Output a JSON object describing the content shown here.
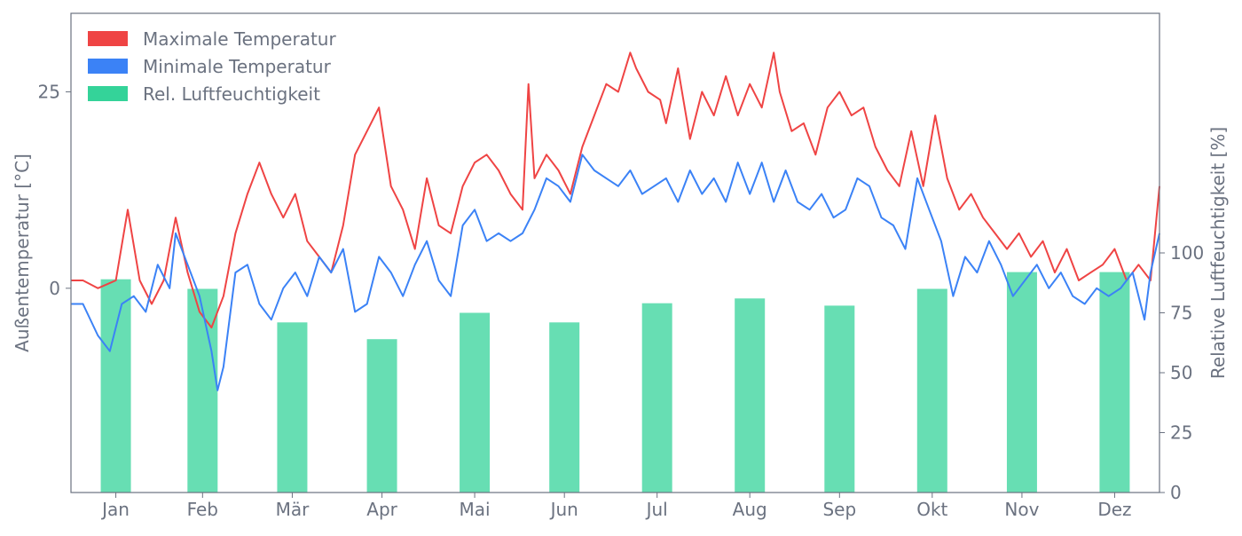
{
  "chart_data": {
    "type": "line",
    "xlabel": "",
    "ylabel_left": "Außentemperatur [°C]",
    "ylabel_right": "Relative Luftfeuchtigkeit [%]",
    "y_left_ticks": [
      "0",
      "25"
    ],
    "y_left_range": [
      -26,
      35
    ],
    "y_right_ticks": [
      "0",
      "25",
      "50",
      "75",
      "100"
    ],
    "y_right_range": [
      0,
      200
    ],
    "x_range": [
      1,
      365
    ],
    "months": [
      {
        "label": "Jan",
        "day": 16
      },
      {
        "label": "Feb",
        "day": 45
      },
      {
        "label": "Mär",
        "day": 75
      },
      {
        "label": "Apr",
        "day": 105
      },
      {
        "label": "Mai",
        "day": 136
      },
      {
        "label": "Jun",
        "day": 166
      },
      {
        "label": "Jul",
        "day": 197
      },
      {
        "label": "Aug",
        "day": 228
      },
      {
        "label": "Sep",
        "day": 258
      },
      {
        "label": "Okt",
        "day": 289
      },
      {
        "label": "Nov",
        "day": 319
      },
      {
        "label": "Dez",
        "day": 350
      }
    ],
    "legend": {
      "position": "top-left",
      "entries": [
        "Maximale Temperatur",
        "Minimale Temperatur",
        "Rel. Luftfeuchtigkeit"
      ]
    },
    "grid": false,
    "series": [
      {
        "name": "Maximale Temperatur",
        "kind": "line",
        "axis": "left",
        "color": "#ef4444",
        "points": [
          [
            1,
            1
          ],
          [
            5,
            1
          ],
          [
            10,
            0
          ],
          [
            16,
            1
          ],
          [
            20,
            10
          ],
          [
            24,
            1
          ],
          [
            28,
            -2
          ],
          [
            32,
            1
          ],
          [
            36,
            9
          ],
          [
            40,
            2
          ],
          [
            44,
            -3
          ],
          [
            48,
            -5
          ],
          [
            52,
            -1
          ],
          [
            56,
            7
          ],
          [
            60,
            12
          ],
          [
            64,
            16
          ],
          [
            68,
            12
          ],
          [
            72,
            9
          ],
          [
            76,
            12
          ],
          [
            80,
            6
          ],
          [
            84,
            4
          ],
          [
            88,
            2
          ],
          [
            92,
            8
          ],
          [
            96,
            17
          ],
          [
            100,
            20
          ],
          [
            104,
            23
          ],
          [
            108,
            13
          ],
          [
            112,
            10
          ],
          [
            116,
            5
          ],
          [
            120,
            14
          ],
          [
            124,
            8
          ],
          [
            128,
            7
          ],
          [
            132,
            13
          ],
          [
            136,
            16
          ],
          [
            140,
            17
          ],
          [
            144,
            15
          ],
          [
            148,
            12
          ],
          [
            152,
            10
          ],
          [
            154,
            26
          ],
          [
            156,
            14
          ],
          [
            160,
            17
          ],
          [
            164,
            15
          ],
          [
            168,
            12
          ],
          [
            172,
            18
          ],
          [
            176,
            22
          ],
          [
            180,
            26
          ],
          [
            184,
            25
          ],
          [
            188,
            30
          ],
          [
            190,
            28
          ],
          [
            194,
            25
          ],
          [
            198,
            24
          ],
          [
            200,
            21
          ],
          [
            204,
            28
          ],
          [
            208,
            19
          ],
          [
            212,
            25
          ],
          [
            216,
            22
          ],
          [
            220,
            27
          ],
          [
            224,
            22
          ],
          [
            228,
            26
          ],
          [
            232,
            23
          ],
          [
            236,
            30
          ],
          [
            238,
            25
          ],
          [
            242,
            20
          ],
          [
            246,
            21
          ],
          [
            250,
            17
          ],
          [
            254,
            23
          ],
          [
            258,
            25
          ],
          [
            262,
            22
          ],
          [
            266,
            23
          ],
          [
            270,
            18
          ],
          [
            274,
            15
          ],
          [
            278,
            13
          ],
          [
            282,
            20
          ],
          [
            286,
            13
          ],
          [
            290,
            22
          ],
          [
            294,
            14
          ],
          [
            298,
            10
          ],
          [
            302,
            12
          ],
          [
            306,
            9
          ],
          [
            310,
            7
          ],
          [
            314,
            5
          ],
          [
            318,
            7
          ],
          [
            322,
            4
          ],
          [
            326,
            6
          ],
          [
            330,
            2
          ],
          [
            334,
            5
          ],
          [
            338,
            1
          ],
          [
            342,
            2
          ],
          [
            346,
            3
          ],
          [
            350,
            5
          ],
          [
            354,
            1
          ],
          [
            358,
            3
          ],
          [
            362,
            1
          ],
          [
            365,
            13
          ]
        ]
      },
      {
        "name": "Minimale Temperatur",
        "kind": "line",
        "axis": "left",
        "color": "#3b82f6",
        "points": [
          [
            1,
            -2
          ],
          [
            5,
            -2
          ],
          [
            10,
            -6
          ],
          [
            14,
            -8
          ],
          [
            18,
            -2
          ],
          [
            22,
            -1
          ],
          [
            26,
            -3
          ],
          [
            30,
            3
          ],
          [
            34,
            0
          ],
          [
            36,
            7
          ],
          [
            40,
            3
          ],
          [
            44,
            -1
          ],
          [
            48,
            -8
          ],
          [
            50,
            -13
          ],
          [
            52,
            -10
          ],
          [
            56,
            2
          ],
          [
            60,
            3
          ],
          [
            64,
            -2
          ],
          [
            68,
            -4
          ],
          [
            72,
            0
          ],
          [
            76,
            2
          ],
          [
            80,
            -1
          ],
          [
            84,
            4
          ],
          [
            88,
            2
          ],
          [
            92,
            5
          ],
          [
            96,
            -3
          ],
          [
            100,
            -2
          ],
          [
            104,
            4
          ],
          [
            108,
            2
          ],
          [
            112,
            -1
          ],
          [
            116,
            3
          ],
          [
            120,
            6
          ],
          [
            124,
            1
          ],
          [
            128,
            -1
          ],
          [
            132,
            8
          ],
          [
            136,
            10
          ],
          [
            140,
            6
          ],
          [
            144,
            7
          ],
          [
            148,
            6
          ],
          [
            152,
            7
          ],
          [
            156,
            10
          ],
          [
            160,
            14
          ],
          [
            164,
            13
          ],
          [
            168,
            11
          ],
          [
            172,
            17
          ],
          [
            176,
            15
          ],
          [
            180,
            14
          ],
          [
            184,
            13
          ],
          [
            188,
            15
          ],
          [
            192,
            12
          ],
          [
            196,
            13
          ],
          [
            200,
            14
          ],
          [
            204,
            11
          ],
          [
            208,
            15
          ],
          [
            212,
            12
          ],
          [
            216,
            14
          ],
          [
            220,
            11
          ],
          [
            224,
            16
          ],
          [
            228,
            12
          ],
          [
            232,
            16
          ],
          [
            236,
            11
          ],
          [
            240,
            15
          ],
          [
            244,
            11
          ],
          [
            248,
            10
          ],
          [
            252,
            12
          ],
          [
            256,
            9
          ],
          [
            260,
            10
          ],
          [
            264,
            14
          ],
          [
            268,
            13
          ],
          [
            272,
            9
          ],
          [
            276,
            8
          ],
          [
            280,
            5
          ],
          [
            284,
            14
          ],
          [
            288,
            10
          ],
          [
            292,
            6
          ],
          [
            296,
            -1
          ],
          [
            300,
            4
          ],
          [
            304,
            2
          ],
          [
            308,
            6
          ],
          [
            312,
            3
          ],
          [
            316,
            -1
          ],
          [
            320,
            1
          ],
          [
            324,
            3
          ],
          [
            328,
            0
          ],
          [
            332,
            2
          ],
          [
            336,
            -1
          ],
          [
            340,
            -2
          ],
          [
            344,
            0
          ],
          [
            348,
            -1
          ],
          [
            352,
            0
          ],
          [
            356,
            2
          ],
          [
            360,
            -4
          ],
          [
            362,
            2
          ],
          [
            365,
            7
          ]
        ]
      },
      {
        "name": "Rel. Luftfeuchtigkeit",
        "kind": "bar",
        "axis": "right",
        "color": "#34d399",
        "categories": [
          "Jan",
          "Feb",
          "Mär",
          "Apr",
          "Mai",
          "Jun",
          "Jul",
          "Aug",
          "Sep",
          "Okt",
          "Nov",
          "Dez"
        ],
        "values": [
          89,
          85,
          71,
          64,
          75,
          71,
          79,
          81,
          78,
          85,
          92,
          92
        ]
      }
    ]
  }
}
